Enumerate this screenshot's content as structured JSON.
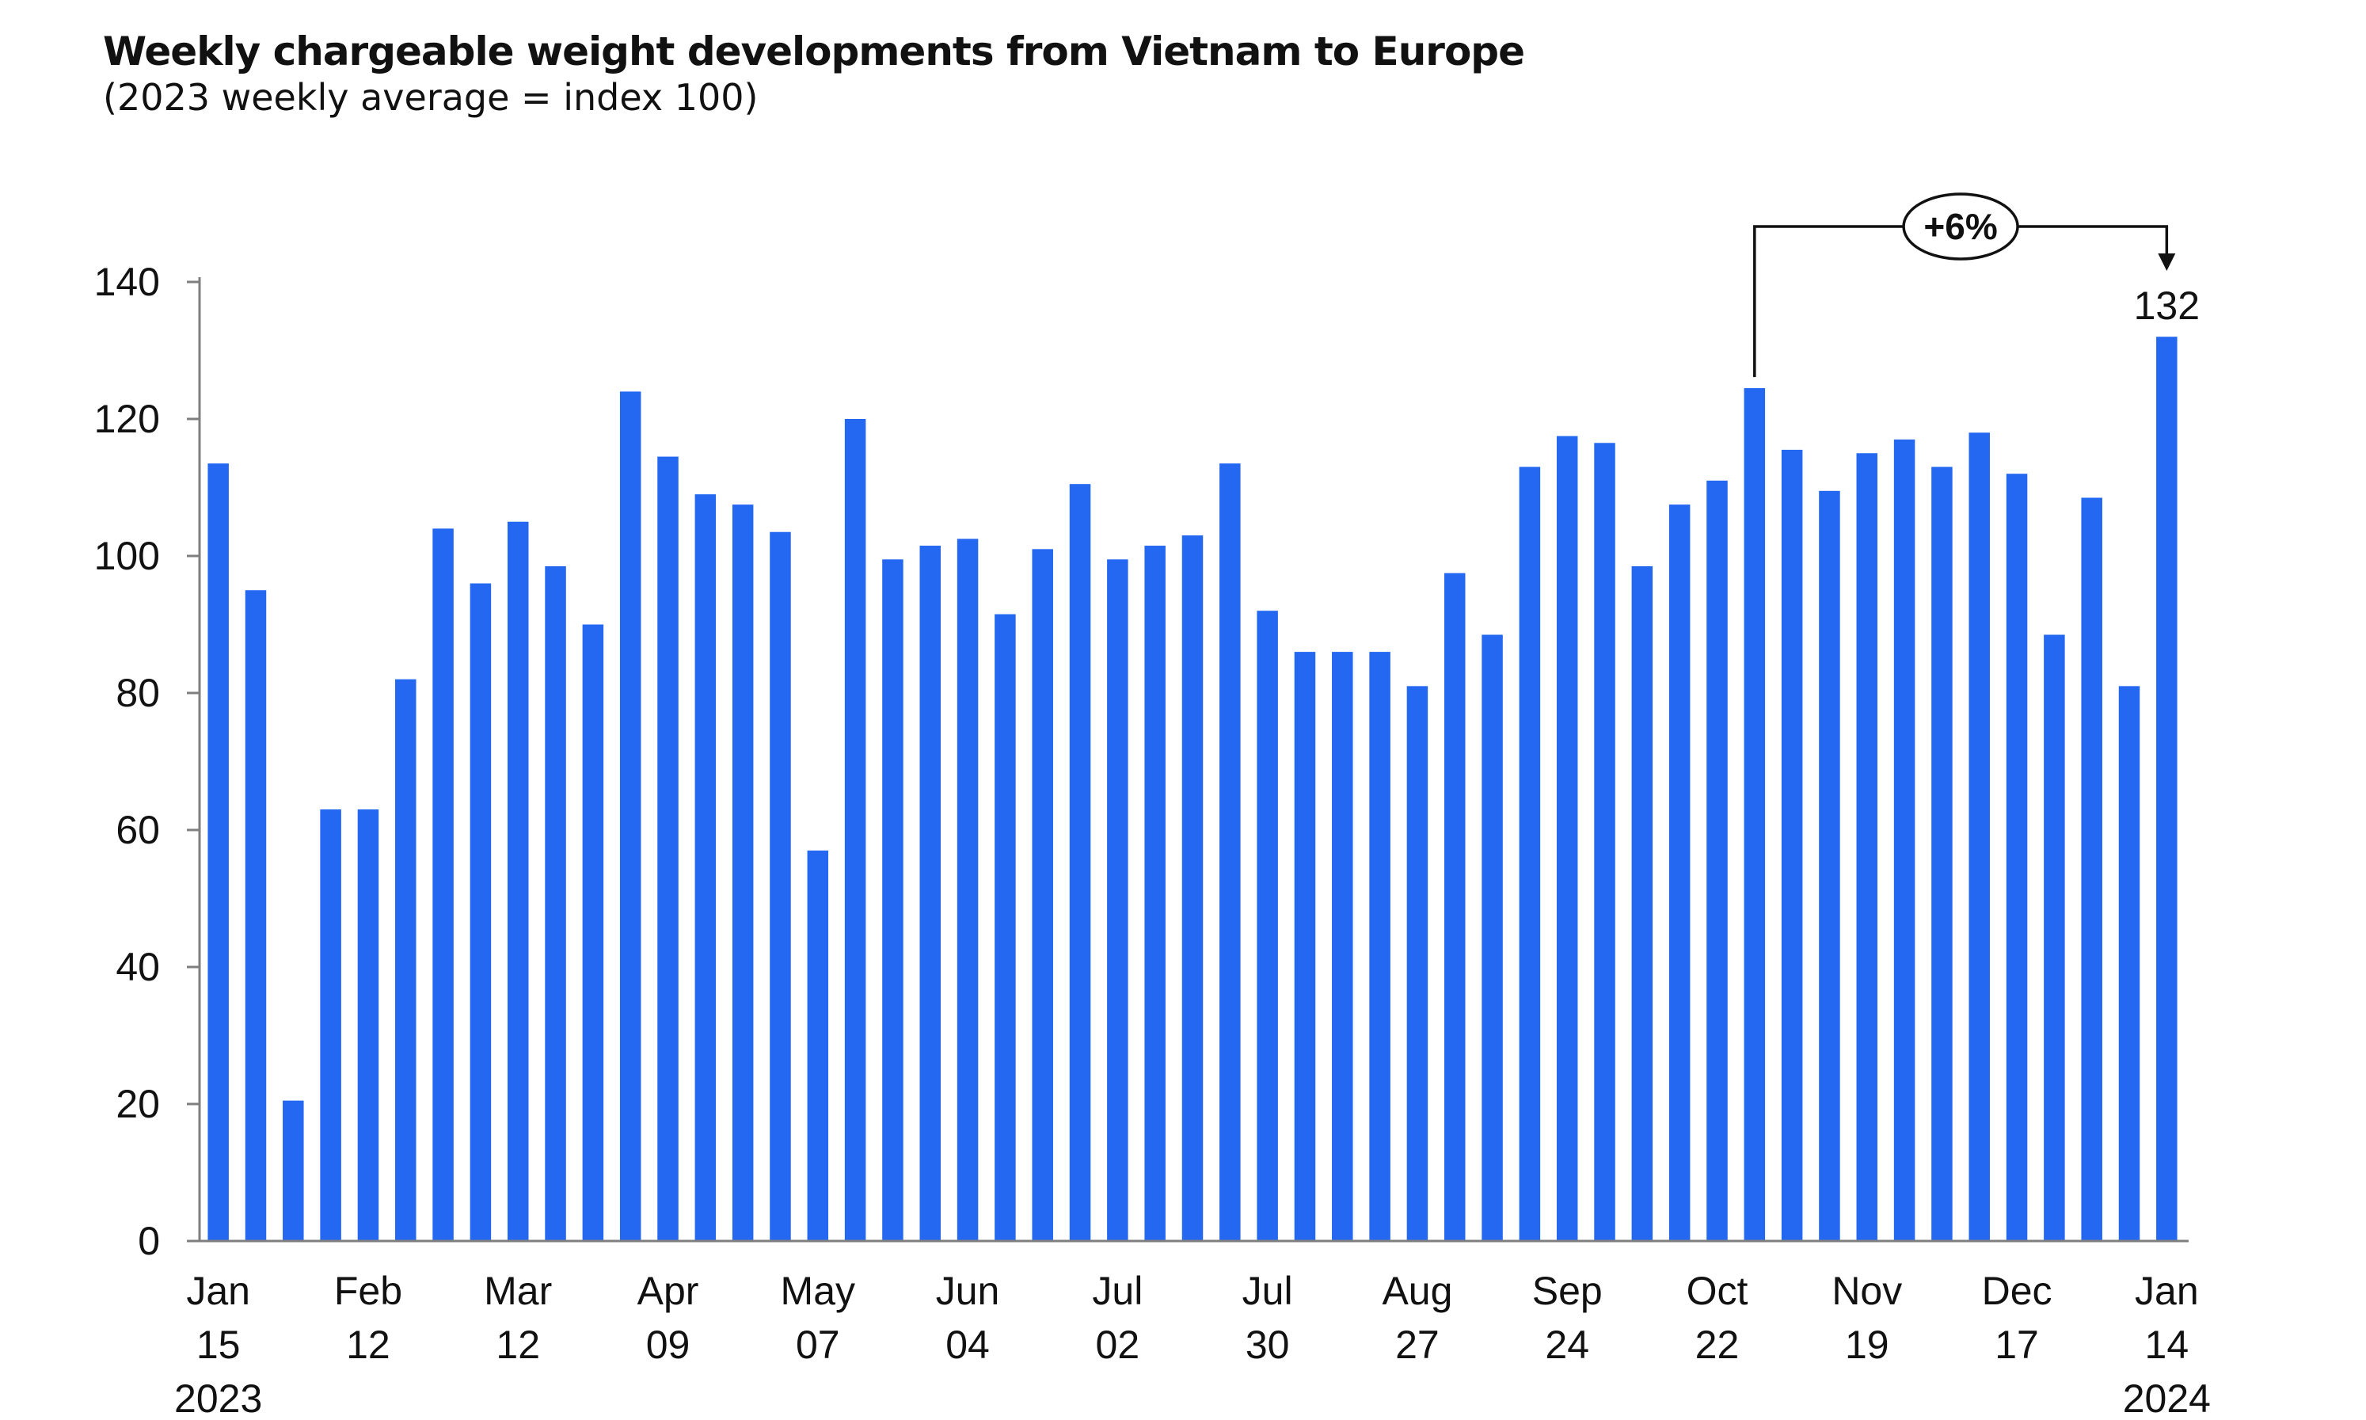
{
  "chart_data": {
    "type": "bar",
    "title": "Weekly chargeable weight developments from Vietnam to Europe",
    "subtitle": "(2023 weekly average = index 100)",
    "ylim": [
      0,
      140
    ],
    "yticks": [
      0,
      20,
      40,
      60,
      80,
      100,
      120,
      140
    ],
    "grid": false,
    "color": "#2468F2",
    "values": [
      113.5,
      95,
      20.5,
      63,
      63,
      82,
      104,
      96,
      105,
      98.5,
      90,
      124,
      114.5,
      109,
      107.5,
      103.5,
      57,
      120,
      99.5,
      101.5,
      102.5,
      91.5,
      101,
      110.5,
      99.5,
      101.5,
      103,
      113.5,
      92,
      86,
      86,
      86,
      81,
      97.5,
      88.5,
      113,
      117.5,
      116.5,
      98.5,
      107.5,
      111,
      124.5,
      115.5,
      109.5,
      115,
      117,
      113,
      118,
      112,
      88.5,
      108.5,
      81,
      132
    ],
    "x_tick_labels": [
      {
        "index": 0,
        "lines": [
          "Jan",
          "15",
          "2023"
        ]
      },
      {
        "index": 4,
        "lines": [
          "Feb",
          "12"
        ]
      },
      {
        "index": 8,
        "lines": [
          "Mar",
          "12"
        ]
      },
      {
        "index": 12,
        "lines": [
          "Apr",
          "09"
        ]
      },
      {
        "index": 16,
        "lines": [
          "May",
          "07"
        ]
      },
      {
        "index": 20,
        "lines": [
          "Jun",
          "04"
        ]
      },
      {
        "index": 24,
        "lines": [
          "Jul",
          "02"
        ]
      },
      {
        "index": 28,
        "lines": [
          "Jul",
          "30"
        ]
      },
      {
        "index": 32,
        "lines": [
          "Aug",
          "27"
        ]
      },
      {
        "index": 36,
        "lines": [
          "Sep",
          "24"
        ]
      },
      {
        "index": 40,
        "lines": [
          "Oct",
          "22"
        ]
      },
      {
        "index": 44,
        "lines": [
          "Nov",
          "19"
        ]
      },
      {
        "index": 48,
        "lines": [
          "Dec",
          "17"
        ]
      },
      {
        "index": 52,
        "lines": [
          "Jan",
          "14",
          "2024"
        ]
      }
    ],
    "annotations": [
      {
        "type": "bracket-arrow",
        "from_index": 41,
        "to_index": 52,
        "label": "+6%"
      },
      {
        "type": "data-label",
        "index": 52,
        "label": "132"
      }
    ]
  }
}
